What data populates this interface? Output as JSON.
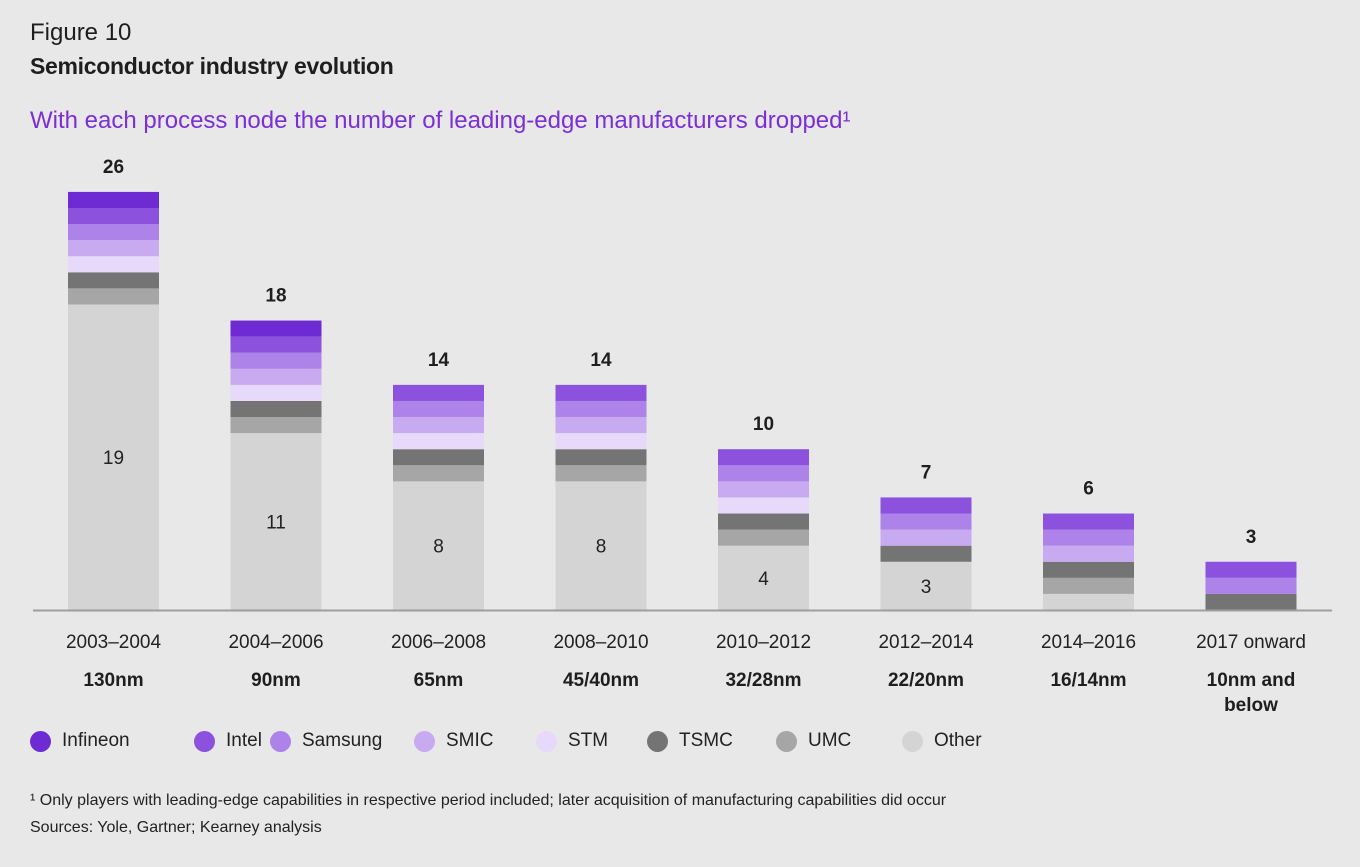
{
  "header": {
    "figure_label": "Figure 10",
    "title": "Semiconductor industry evolution",
    "subtitle": "With each process node the number of leading-edge manufacturers dropped¹"
  },
  "chart_data": {
    "type": "bar",
    "stacked": true,
    "categories": [
      "2003–2004",
      "2004–2006",
      "2006–2008",
      "2008–2010",
      "2010–2012",
      "2012–2014",
      "2014–2016",
      "2017 onward"
    ],
    "category_sublabels": [
      "130nm",
      "90nm",
      "65nm",
      "45/40nm",
      "32/28nm",
      "22/20nm",
      "16/14nm",
      "10nm and below"
    ],
    "totals": [
      26,
      18,
      14,
      14,
      10,
      7,
      6,
      3
    ],
    "series": [
      {
        "name": "Other",
        "color": "#d4d4d4",
        "values": [
          19,
          11,
          8,
          8,
          4,
          3,
          1,
          0
        ]
      },
      {
        "name": "UMC",
        "color": "#a6a6a6",
        "values": [
          1,
          1,
          1,
          1,
          1,
          0,
          1,
          0
        ]
      },
      {
        "name": "TSMC",
        "color": "#747474",
        "values": [
          1,
          1,
          1,
          1,
          1,
          1,
          1,
          1
        ]
      },
      {
        "name": "STM",
        "color": "#e6d9fa",
        "values": [
          1,
          1,
          1,
          1,
          1,
          0,
          0,
          0
        ]
      },
      {
        "name": "SMIC",
        "color": "#c8aaf0",
        "values": [
          1,
          1,
          1,
          1,
          1,
          1,
          1,
          0
        ]
      },
      {
        "name": "Samsung",
        "color": "#ad82e9",
        "values": [
          1,
          1,
          1,
          1,
          1,
          1,
          1,
          1
        ]
      },
      {
        "name": "Intel",
        "color": "#8c51dd",
        "values": [
          1,
          1,
          1,
          1,
          1,
          1,
          1,
          1
        ]
      },
      {
        "name": "Infineon",
        "color": "#6e2bd3",
        "values": [
          1,
          1,
          0,
          0,
          0,
          0,
          0,
          0
        ]
      }
    ],
    "ylim": [
      0,
      26
    ],
    "grid": false,
    "legend": "bottom-left"
  },
  "legend_order": [
    "Infineon",
    "Intel",
    "Samsung",
    "SMIC",
    "STM",
    "TSMC",
    "UMC",
    "Other"
  ],
  "footnote": "¹ Only players with leading-edge capabilities in respective period included; later acquisition of manufacturing capabilities did occur",
  "sources": "Sources: Yole, Gartner; Kearney analysis"
}
